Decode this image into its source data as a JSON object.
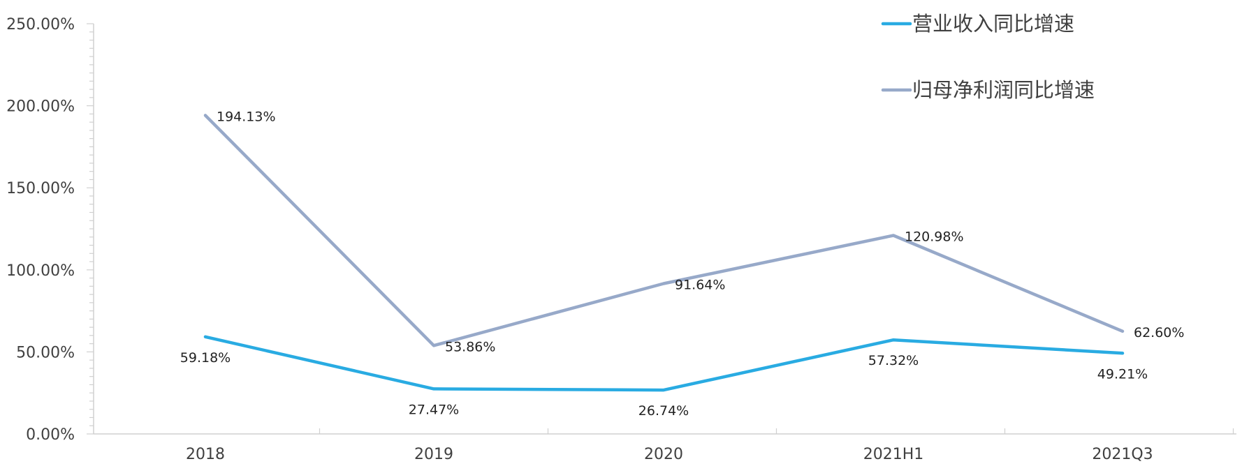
{
  "chart_data": {
    "type": "line",
    "categories": [
      "2018",
      "2019",
      "2020",
      "2021H1",
      "2021Q3"
    ],
    "series": [
      {
        "name": "营业收入同比增速",
        "values": [
          59.18,
          27.47,
          26.74,
          57.32,
          49.21
        ],
        "labels": [
          "59.18%",
          "27.47%",
          "26.74%",
          "57.32%",
          "49.21%"
        ],
        "color": "#29ABE2"
      },
      {
        "name": "归母净利润同比增速",
        "values": [
          194.13,
          53.86,
          91.64,
          120.98,
          62.6
        ],
        "labels": [
          "194.13%",
          "53.86%",
          "91.64%",
          "120.98%",
          "62.60%"
        ],
        "color": "#97A9C9"
      }
    ],
    "ylim": [
      0,
      250
    ],
    "yticks": [
      "0.00%",
      "50.00%",
      "100.00%",
      "150.00%",
      "200.00%",
      "250.00%"
    ],
    "legend_position": "top-right",
    "grid": false
  }
}
